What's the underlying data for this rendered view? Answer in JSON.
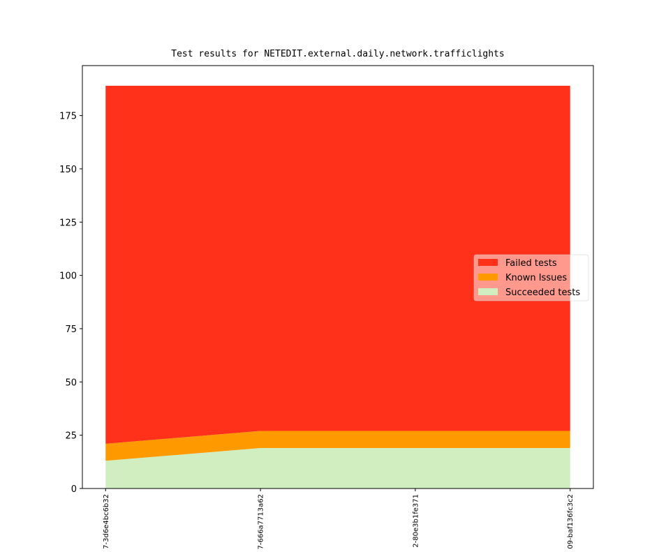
{
  "chart_data": {
    "type": "stackedarea",
    "title": "Test results for NETEDIT.external.daily.network.trafficlights",
    "categories": [
      "7-3d6e4bc6b32",
      "7-666a7713a62",
      "2-80e3b1fe371",
      "09-baf136fc3c2"
    ],
    "series": [
      {
        "name": "Succeeded tests",
        "color": "#d0eec0",
        "values": [
          13,
          19,
          19,
          19
        ]
      },
      {
        "name": "Known Issues",
        "color": "#ff9900",
        "values": [
          8,
          8,
          8,
          8
        ]
      },
      {
        "name": "Failed tests",
        "color": "#ff311a",
        "values": [
          168,
          162,
          162,
          162
        ]
      }
    ],
    "ylim": [
      0,
      198.45
    ],
    "yticks": [
      0,
      25,
      50,
      75,
      100,
      125,
      150,
      175
    ],
    "legend": "right"
  }
}
